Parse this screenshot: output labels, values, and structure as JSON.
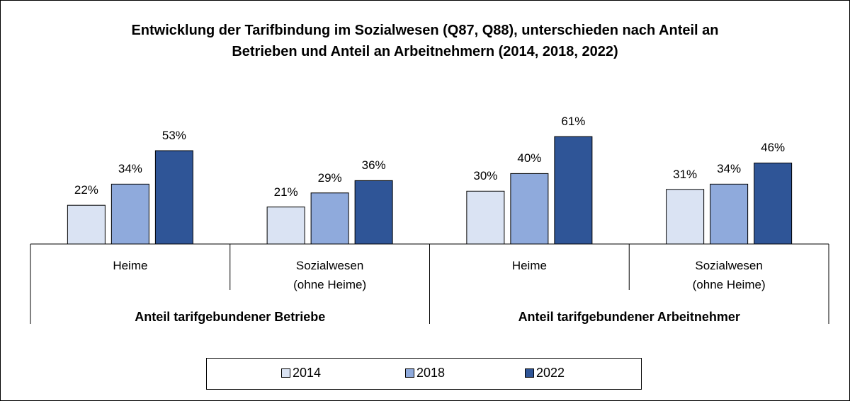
{
  "chart_data": {
    "type": "bar",
    "title": "Entwicklung der Tarifbindung im Sozialwesen (Q87, Q88), unterschieden nach Anteil an\nBetrieben und Anteil an Arbeitnehmern (2014, 2018, 2022)",
    "categories": [
      "Heime",
      "Sozialwesen\n(ohne Heime)",
      "Heime",
      "Sozialwesen\n(ohne Heime)"
    ],
    "groups": [
      "Anteil tarifgebundener Betriebe",
      "Anteil tarifgebundener Arbeitnehmer"
    ],
    "series": [
      {
        "name": "2014",
        "color": "#dae3f3",
        "values": [
          22,
          21,
          30,
          31
        ],
        "value_labels": [
          "22%",
          "21%",
          "30%",
          "31%"
        ]
      },
      {
        "name": "2018",
        "color": "#8faadc",
        "values": [
          34,
          29,
          40,
          34
        ],
        "value_labels": [
          "34%",
          "29%",
          "40%",
          "34%"
        ]
      },
      {
        "name": "2022",
        "color": "#2f5597",
        "values": [
          53,
          36,
          61,
          46
        ],
        "value_labels": [
          "53%",
          "36%",
          "61%",
          "46%"
        ]
      }
    ]
  }
}
